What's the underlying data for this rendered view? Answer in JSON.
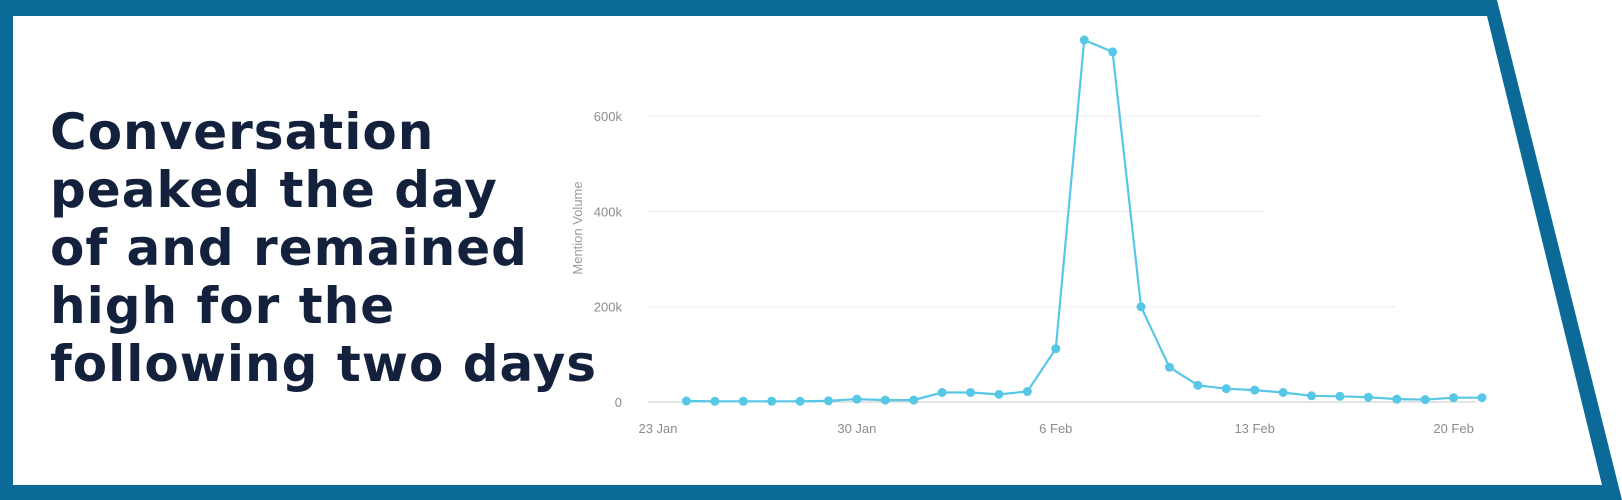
{
  "headline": {
    "lines": [
      "Conversation",
      "peaked the day",
      "of and remained",
      "high for the",
      "following two days"
    ]
  },
  "colors": {
    "frame": "#0b6a97",
    "headline": "#13213d",
    "series": "#57c7e6",
    "grid": "#dcdcdc",
    "tick_text": "#8c8c8c"
  },
  "chart_data": {
    "type": "line",
    "title": "",
    "xlabel": "",
    "ylabel": "Mention Volume",
    "x_tick_labels": [
      "23 Jan",
      "30 Jan",
      "6 Feb",
      "13 Feb",
      "20 Feb"
    ],
    "y_tick_labels": [
      "0",
      "200k",
      "400k",
      "600k"
    ],
    "y_ticks": [
      0,
      200000,
      400000,
      600000
    ],
    "ylim": [
      0,
      760000
    ],
    "xlim": [
      "2024-01-23",
      "2024-02-21"
    ],
    "grid": "horizontal",
    "legend": "none",
    "series": [
      {
        "x": [
          "2024-01-24",
          "2024-01-25",
          "2024-01-26",
          "2024-01-27",
          "2024-01-28",
          "2024-01-29",
          "2024-01-30",
          "2024-01-31",
          "2024-02-01",
          "2024-02-02",
          "2024-02-03",
          "2024-02-04",
          "2024-02-05",
          "2024-02-06",
          "2024-02-07",
          "2024-02-08",
          "2024-02-09",
          "2024-02-10",
          "2024-02-11",
          "2024-02-12",
          "2024-02-13",
          "2024-02-14",
          "2024-02-15",
          "2024-02-16",
          "2024-02-17",
          "2024-02-18",
          "2024-02-19",
          "2024-02-20",
          "2024-02-21"
        ],
        "values": [
          2000,
          1500,
          1500,
          1500,
          1500,
          2500,
          6000,
          4000,
          4000,
          20000,
          20000,
          16000,
          22000,
          112000,
          760000,
          735000,
          200000,
          73000,
          35000,
          28000,
          25000,
          20000,
          13000,
          12000,
          10000,
          6000,
          5000,
          9000,
          9000
        ]
      }
    ]
  }
}
